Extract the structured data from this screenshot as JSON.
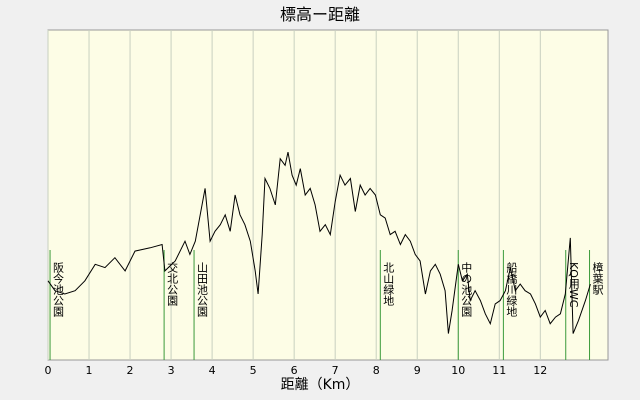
{
  "chart_data": {
    "type": "line",
    "title": "標高ー距離",
    "xlabel": "距離（Km）",
    "color": "#000000",
    "grid": true,
    "xlim": [
      0,
      13.65
    ],
    "xticks": [
      0,
      1,
      2,
      3,
      4,
      5,
      6,
      7,
      8,
      9,
      10,
      11,
      12
    ],
    "ylim": [
      0,
      100
    ],
    "x": [
      0,
      0.17,
      0.41,
      0.66,
      0.9,
      1.15,
      1.39,
      1.63,
      1.88,
      2.12,
      2.49,
      2.78,
      2.85,
      3.1,
      3.34,
      3.46,
      3.59,
      3.71,
      3.83,
      3.95,
      4.07,
      4.2,
      4.32,
      4.44,
      4.56,
      4.68,
      4.8,
      4.93,
      5.05,
      5.12,
      5.22,
      5.29,
      5.41,
      5.54,
      5.66,
      5.78,
      5.85,
      5.95,
      6.05,
      6.15,
      6.27,
      6.39,
      6.51,
      6.63,
      6.76,
      6.88,
      7.0,
      7.12,
      7.24,
      7.37,
      7.49,
      7.61,
      7.73,
      7.85,
      7.98,
      8.1,
      8.22,
      8.34,
      8.46,
      8.59,
      8.71,
      8.83,
      8.95,
      9.07,
      9.2,
      9.32,
      9.44,
      9.56,
      9.68,
      9.76,
      9.85,
      10.0,
      10.1,
      10.22,
      10.29,
      10.41,
      10.54,
      10.66,
      10.78,
      10.9,
      11.02,
      11.15,
      11.27,
      11.39,
      11.51,
      11.63,
      11.76,
      11.88,
      12.0,
      12.12,
      12.24,
      12.37,
      12.49,
      12.61,
      12.73,
      12.8,
      12.93,
      13.1,
      13.22
    ],
    "values": [
      24,
      21,
      20,
      21,
      24,
      29,
      28,
      31,
      27,
      33,
      34,
      35,
      27,
      30,
      36,
      32,
      36,
      44,
      52,
      36,
      39,
      41,
      44,
      39,
      50,
      44,
      41,
      36,
      27,
      20,
      38,
      55,
      52,
      47,
      61,
      59,
      63,
      56,
      53,
      58,
      50,
      52,
      47,
      39,
      41,
      38,
      48,
      56,
      53,
      55,
      45,
      53,
      50,
      52,
      50,
      44,
      43,
      38,
      39,
      35,
      38,
      36,
      32,
      30,
      20,
      27,
      29,
      26,
      21,
      8,
      15,
      29,
      24,
      26,
      18,
      21,
      18,
      14,
      11,
      17,
      18,
      21,
      28,
      21,
      23,
      21,
      20,
      17,
      13,
      15,
      11,
      13,
      14,
      20,
      37,
      8,
      12,
      18,
      23
    ],
    "landmarks": [
      {
        "x": 0.05,
        "label": "阪今池公園"
      },
      {
        "x": 2.83,
        "label": "交北公園"
      },
      {
        "x": 3.56,
        "label": "山田池公園"
      },
      {
        "x": 8.1,
        "label": "北山緑地"
      },
      {
        "x": 10.0,
        "label": "中の池公園"
      },
      {
        "x": 11.1,
        "label": "船橋川緑地"
      },
      {
        "x": 12.62,
        "label": "KQ用WC"
      },
      {
        "x": 13.2,
        "label": "樟葉駅"
      }
    ]
  }
}
